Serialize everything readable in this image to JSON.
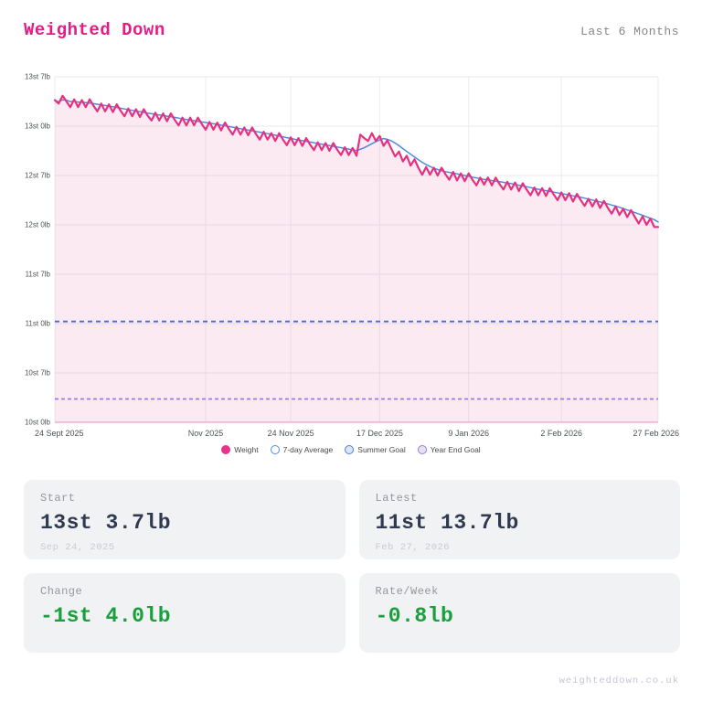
{
  "header": {
    "title": "Weighted Down",
    "range_label": "Last 6 Months"
  },
  "chart_data": {
    "type": "line",
    "title": "",
    "x_axis": {
      "tick_labels": [
        "24 Sept 2025",
        "Nov 2025",
        "24 Nov 2025",
        "17 Dec 2025",
        "9 Jan 2026",
        "2 Feb 2026",
        "27 Feb 2026"
      ],
      "tick_days": [
        0,
        39,
        61,
        84,
        107,
        131,
        156
      ],
      "total_days": 156
    },
    "y_axis": {
      "tick_labels": [
        "13st 7lb",
        "13st 0lb",
        "12st 7lb",
        "12st 0lb",
        "11st 7lb",
        "11st 0lb",
        "10st 7lb",
        "10st 0lb"
      ],
      "tick_values_lb": [
        189,
        182,
        175,
        168,
        161,
        154,
        147,
        140
      ]
    },
    "series": [
      {
        "name": "Weight",
        "color": "#e5317f",
        "values_lb": [
          185.7,
          185.2,
          186.3,
          185.5,
          184.7,
          185.8,
          184.7,
          185.7,
          184.7,
          185.8,
          184.9,
          184.1,
          185.2,
          184.1,
          185.1,
          184.0,
          185.1,
          184.2,
          183.4,
          184.5,
          183.4,
          184.4,
          183.3,
          184.4,
          183.5,
          182.8,
          183.9,
          182.8,
          183.8,
          182.7,
          183.8,
          182.9,
          182.1,
          183.2,
          182.1,
          183.2,
          182.1,
          183.2,
          182.3,
          181.5,
          182.6,
          181.5,
          182.5,
          181.4,
          182.5,
          181.6,
          180.8,
          181.9,
          180.8,
          181.8,
          180.7,
          181.8,
          180.9,
          180.1,
          181.2,
          180.1,
          181.0,
          179.9,
          181.0,
          180.1,
          179.3,
          180.4,
          179.3,
          180.3,
          179.2,
          180.3,
          179.4,
          178.6,
          179.7,
          178.6,
          179.6,
          178.5,
          179.6,
          178.7,
          177.9,
          179.0,
          177.9,
          178.9,
          177.8,
          180.8,
          180.3,
          179.9,
          181.0,
          179.9,
          180.6,
          179.2,
          180.0,
          178.8,
          177.7,
          178.4,
          177.0,
          177.8,
          176.4,
          177.3,
          176.1,
          175.1,
          176.2,
          175.1,
          176.1,
          175.0,
          176.1,
          175.2,
          174.4,
          175.5,
          174.3,
          175.3,
          174.2,
          175.3,
          174.4,
          173.6,
          174.7,
          173.7,
          174.7,
          173.6,
          174.7,
          173.8,
          173.0,
          174.1,
          173.0,
          174.0,
          172.8,
          173.9,
          173.0,
          172.2,
          173.3,
          172.2,
          173.2,
          172.1,
          173.2,
          172.3,
          171.5,
          172.6,
          171.5,
          172.5,
          171.3,
          172.4,
          171.5,
          170.7,
          171.7,
          170.6,
          171.6,
          170.4,
          171.4,
          170.4,
          169.6,
          170.6,
          169.4,
          170.3,
          169.1,
          170.1,
          169.1,
          168.2,
          169.2,
          168.0,
          168.9,
          167.7,
          167.7
        ]
      },
      {
        "name": "7-day Average",
        "color": "#4a8be0",
        "derived_from": "Weight",
        "window_days": 7
      }
    ],
    "goals": [
      {
        "name": "Summer Goal",
        "value_lb": 154.3,
        "color": "#3e6ce0",
        "dash": "5 4"
      },
      {
        "name": "Year End Goal",
        "value_lb": 143.3,
        "color": "#9a79e2",
        "dash": "4 3"
      }
    ],
    "legend": [
      {
        "label": "Weight",
        "fill": "#e8338c",
        "stroke": "#e8338c"
      },
      {
        "label": "7-day Average",
        "fill": "#ffffff",
        "stroke": "#4a8ee6"
      },
      {
        "label": "Summer Goal",
        "fill": "#dde4f3",
        "stroke": "#4a7de0"
      },
      {
        "label": "Year End Goal",
        "fill": "#e6e2f2",
        "stroke": "#9a79e2"
      }
    ],
    "area_fill": "rgba(229,49,127,0.10)",
    "grid": true,
    "legend_position": "bottom"
  },
  "stats": [
    {
      "label": "Start",
      "value": "13st 3.7lb",
      "date": "Sep 24, 2025",
      "value_color": "dark"
    },
    {
      "label": "Latest",
      "value": "11st 13.7lb",
      "date": "Feb 27, 2026",
      "value_color": "dark"
    },
    {
      "label": "Change",
      "value": "-1st 4.0lb",
      "date": "",
      "value_color": "green"
    },
    {
      "label": "Rate/Week",
      "value": "-0.8lb",
      "date": "",
      "value_color": "green"
    }
  ],
  "footer": {
    "site": "weighteddown.co.uk"
  },
  "colors": {
    "brand_pink": "#e31c86",
    "weight_pink": "#e5317f",
    "avg_blue": "#4a8be0",
    "summer_goal_blue": "#3e6ce0",
    "year_end_purple": "#9a79e2",
    "grid_h": "#e9e9ec",
    "grid_v": "#ededf0",
    "bottom_axis": "rgba(224,53,127,0.3)",
    "value_dark": "#2f3950",
    "accent_green": "#18a03c"
  }
}
